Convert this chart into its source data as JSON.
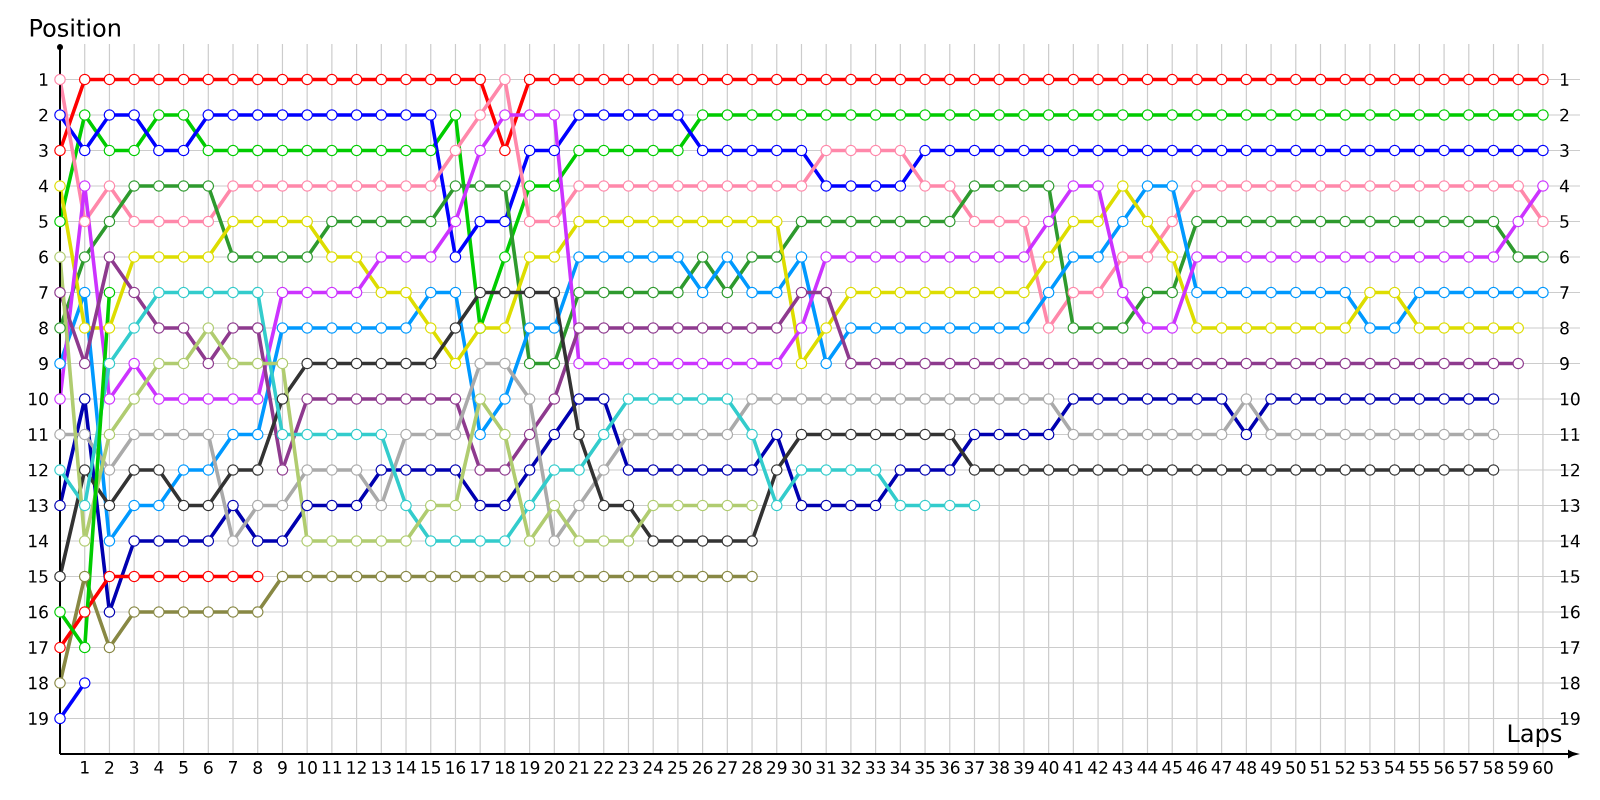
{
  "chart_data": {
    "type": "line",
    "xlabel": "Laps",
    "ylabel": "Position",
    "x": [
      0,
      1,
      2,
      3,
      4,
      5,
      6,
      7,
      8,
      9,
      10,
      11,
      12,
      13,
      14,
      15,
      16,
      17,
      18,
      19,
      20,
      21,
      22,
      23,
      24,
      25,
      26,
      27,
      28,
      29,
      30,
      31,
      32,
      33,
      34,
      35,
      36,
      37,
      38,
      39,
      40,
      41,
      42,
      43,
      44,
      45,
      46,
      47,
      48,
      49,
      50,
      51,
      52,
      53,
      54,
      55,
      56,
      57,
      58,
      59,
      60
    ],
    "xlim": [
      0,
      61.5
    ],
    "xticks": [
      1,
      2,
      3,
      4,
      5,
      6,
      7,
      8,
      9,
      10,
      11,
      12,
      13,
      14,
      15,
      16,
      17,
      18,
      19,
      20,
      21,
      22,
      23,
      24,
      25,
      26,
      27,
      28,
      29,
      30,
      31,
      32,
      33,
      34,
      35,
      36,
      37,
      38,
      39,
      40,
      41,
      42,
      43,
      44,
      45,
      46,
      47,
      48,
      49,
      50,
      51,
      52,
      53,
      54,
      55,
      56,
      57,
      58,
      59,
      60
    ],
    "ylim": [
      20,
      0
    ],
    "yticks": [
      1,
      2,
      3,
      4,
      5,
      6,
      7,
      8,
      9,
      10,
      11,
      12,
      13,
      14,
      15,
      16,
      17,
      18,
      19
    ],
    "y2lim": [
      20,
      0
    ],
    "y2ticks": [
      1,
      2,
      3,
      4,
      5,
      6,
      7,
      8,
      9,
      10,
      11,
      12,
      13,
      14,
      15,
      16,
      17,
      18,
      19
    ],
    "grid": true,
    "marker": "circle",
    "line_style": "solid",
    "series": [
      {
        "color": "#ff0000",
        "values": [
          3,
          1,
          1,
          1,
          1,
          1,
          1,
          1,
          1,
          1,
          1,
          1,
          1,
          1,
          1,
          1,
          1,
          1,
          3,
          1,
          1,
          1,
          1,
          1,
          1,
          1,
          1,
          1,
          1,
          1,
          1,
          1,
          1,
          1,
          1,
          1,
          1,
          1,
          1,
          1,
          1,
          1,
          1,
          1,
          1,
          1,
          1,
          1,
          1,
          1,
          1,
          1,
          1,
          1,
          1,
          1,
          1,
          1,
          1,
          1,
          1
        ]
      },
      {
        "color": "#00cc00",
        "values": [
          5,
          2,
          3,
          3,
          2,
          2,
          3,
          3,
          3,
          3,
          3,
          3,
          3,
          3,
          3,
          3,
          2,
          8,
          6,
          4,
          4,
          3,
          3,
          3,
          3,
          3,
          2,
          2,
          2,
          2,
          2,
          2,
          2,
          2,
          2,
          2,
          2,
          2,
          2,
          2,
          2,
          2,
          2,
          2,
          2,
          2,
          2,
          2,
          2,
          2,
          2,
          2,
          2,
          2,
          2,
          2,
          2,
          2,
          2,
          2,
          2
        ]
      },
      {
        "color": "#0000ff",
        "values": [
          2,
          3,
          2,
          2,
          3,
          3,
          2,
          2,
          2,
          2,
          2,
          2,
          2,
          2,
          2,
          2,
          6,
          5,
          5,
          3,
          3,
          2,
          2,
          2,
          2,
          2,
          3,
          3,
          3,
          3,
          3,
          4,
          4,
          4,
          4,
          3,
          3,
          3,
          3,
          3,
          3,
          3,
          3,
          3,
          3,
          3,
          3,
          3,
          3,
          3,
          3,
          3,
          3,
          3,
          3,
          3,
          3,
          3,
          3,
          3,
          3
        ]
      },
      {
        "color": "#ff88aa",
        "values": [
          1,
          5,
          4,
          5,
          5,
          5,
          5,
          4,
          4,
          4,
          4,
          4,
          4,
          4,
          4,
          4,
          3,
          2,
          1,
          5,
          5,
          4,
          4,
          4,
          4,
          4,
          4,
          4,
          4,
          4,
          4,
          3,
          3,
          3,
          3,
          4,
          4,
          5,
          5,
          5,
          8,
          7,
          7,
          6,
          6,
          5,
          4,
          4,
          4,
          4,
          4,
          4,
          4,
          4,
          4,
          4,
          4,
          4,
          4,
          4,
          5
        ]
      },
      {
        "color": "#2e9a2e",
        "values": [
          8,
          6,
          5,
          4,
          4,
          4,
          4,
          6,
          6,
          6,
          6,
          5,
          5,
          5,
          5,
          5,
          4,
          4,
          4,
          9,
          9,
          7,
          7,
          7,
          7,
          7,
          6,
          7,
          6,
          6,
          5,
          5,
          5,
          5,
          5,
          5,
          5,
          4,
          4,
          4,
          4,
          8,
          8,
          8,
          7,
          7,
          5,
          5,
          5,
          5,
          5,
          5,
          5,
          5,
          5,
          5,
          5,
          5,
          5,
          6,
          6
        ]
      },
      {
        "color": "#0099ff",
        "values": [
          9,
          7,
          14,
          13,
          13,
          12,
          12,
          11,
          11,
          8,
          8,
          8,
          8,
          8,
          8,
          7,
          7,
          11,
          10,
          8,
          8,
          6,
          6,
          6,
          6,
          6,
          7,
          6,
          7,
          7,
          6,
          9,
          8,
          8,
          8,
          8,
          8,
          8,
          8,
          8,
          7,
          6,
          6,
          5,
          4,
          4,
          7,
          7,
          7,
          7,
          7,
          7,
          7,
          8,
          8,
          7,
          7,
          7,
          7,
          7,
          7
        ]
      },
      {
        "color": "#dddd00",
        "values": [
          4,
          8,
          8,
          6,
          6,
          6,
          6,
          5,
          5,
          5,
          5,
          6,
          6,
          7,
          7,
          8,
          9,
          8,
          8,
          6,
          6,
          5,
          5,
          5,
          5,
          5,
          5,
          5,
          5,
          5,
          9,
          8,
          7,
          7,
          7,
          7,
          7,
          7,
          7,
          7,
          6,
          5,
          5,
          4,
          5,
          6,
          8,
          8,
          8,
          8,
          8,
          8,
          8,
          7,
          7,
          8,
          8,
          8,
          8,
          8,
          null
        ]
      },
      {
        "color": "#cc33ff",
        "values": [
          10,
          4,
          10,
          9,
          10,
          10,
          10,
          10,
          10,
          7,
          7,
          7,
          7,
          6,
          6,
          6,
          5,
          3,
          2,
          2,
          2,
          9,
          9,
          9,
          9,
          9,
          9,
          9,
          9,
          9,
          8,
          6,
          6,
          6,
          6,
          6,
          6,
          6,
          6,
          6,
          5,
          4,
          4,
          7,
          8,
          8,
          6,
          6,
          6,
          6,
          6,
          6,
          6,
          6,
          6,
          6,
          6,
          6,
          6,
          5,
          4
        ]
      },
      {
        "color": "#8e3a8e",
        "values": [
          7,
          9,
          6,
          7,
          8,
          8,
          9,
          8,
          8,
          12,
          10,
          10,
          10,
          10,
          10,
          10,
          10,
          12,
          12,
          11,
          10,
          8,
          8,
          8,
          8,
          8,
          8,
          8,
          8,
          8,
          7,
          7,
          9,
          9,
          9,
          9,
          9,
          9,
          9,
          9,
          9,
          9,
          9,
          9,
          9,
          9,
          9,
          9,
          9,
          9,
          9,
          9,
          9,
          9,
          9,
          9,
          9,
          9,
          9,
          9,
          null
        ]
      },
      {
        "color": "#0000b0",
        "values": [
          13,
          10,
          16,
          14,
          14,
          14,
          14,
          13,
          14,
          14,
          13,
          13,
          13,
          12,
          12,
          12,
          12,
          13,
          13,
          12,
          11,
          10,
          10,
          12,
          12,
          12,
          12,
          12,
          12,
          11,
          13,
          13,
          13,
          13,
          12,
          12,
          12,
          11,
          11,
          11,
          11,
          10,
          10,
          10,
          10,
          10,
          10,
          10,
          11,
          10,
          10,
          10,
          10,
          10,
          10,
          10,
          10,
          10,
          10,
          null,
          null
        ]
      },
      {
        "color": "#aaaaaa",
        "values": [
          11,
          11,
          12,
          11,
          11,
          11,
          11,
          14,
          13,
          13,
          12,
          12,
          12,
          13,
          11,
          11,
          11,
          9,
          9,
          10,
          14,
          13,
          12,
          11,
          11,
          11,
          11,
          11,
          10,
          10,
          10,
          10,
          10,
          10,
          10,
          10,
          10,
          10,
          10,
          10,
          10,
          11,
          11,
          11,
          11,
          11,
          11,
          11,
          10,
          11,
          11,
          11,
          11,
          11,
          11,
          11,
          11,
          11,
          11,
          null,
          null
        ]
      },
      {
        "color": "#333333",
        "values": [
          15,
          12,
          13,
          12,
          12,
          13,
          13,
          12,
          12,
          10,
          9,
          9,
          9,
          9,
          9,
          9,
          8,
          7,
          7,
          7,
          7,
          11,
          13,
          13,
          14,
          14,
          14,
          14,
          14,
          12,
          11,
          11,
          11,
          11,
          11,
          11,
          11,
          12,
          12,
          12,
          12,
          12,
          12,
          12,
          12,
          12,
          12,
          12,
          12,
          12,
          12,
          12,
          12,
          12,
          12,
          12,
          12,
          12,
          12,
          null,
          null
        ]
      },
      {
        "color": "#33cccc",
        "values": [
          12,
          13,
          9,
          8,
          7,
          7,
          7,
          7,
          7,
          11,
          11,
          11,
          11,
          11,
          13,
          14,
          14,
          14,
          14,
          13,
          12,
          12,
          11,
          10,
          10,
          10,
          10,
          10,
          11,
          13,
          12,
          12,
          12,
          12,
          13,
          13,
          13,
          13,
          null,
          null,
          null,
          null,
          null,
          null,
          null,
          null,
          null,
          null,
          null,
          null,
          null,
          null,
          null,
          null,
          null,
          null,
          null,
          null,
          null,
          null,
          null
        ]
      },
      {
        "color": "#b0cc70",
        "values": [
          6,
          14,
          11,
          10,
          9,
          9,
          8,
          9,
          9,
          9,
          14,
          14,
          14,
          14,
          14,
          13,
          13,
          10,
          11,
          14,
          13,
          14,
          14,
          14,
          13,
          13,
          13,
          13,
          13,
          null,
          null,
          null,
          null,
          null,
          null,
          null,
          null,
          null,
          null,
          null,
          null,
          null,
          null,
          null,
          null,
          null,
          null,
          null,
          null,
          null,
          null,
          null,
          null,
          null,
          null,
          null,
          null,
          null,
          null,
          null,
          null
        ]
      },
      {
        "color": "#888844",
        "values": [
          18,
          15,
          17,
          16,
          16,
          16,
          16,
          16,
          16,
          15,
          15,
          15,
          15,
          15,
          15,
          15,
          15,
          15,
          15,
          15,
          15,
          15,
          15,
          15,
          15,
          15,
          15,
          15,
          15,
          null,
          null,
          null,
          null,
          null,
          null,
          null,
          null,
          null,
          null,
          null,
          null,
          null,
          null,
          null,
          null,
          null,
          null,
          null,
          null,
          null,
          null,
          null,
          null,
          null,
          null,
          null,
          null,
          null,
          null,
          null,
          null
        ]
      },
      {
        "color": "#ff0000",
        "values": [
          17,
          16,
          15,
          15,
          15,
          15,
          15,
          15,
          15,
          null,
          null,
          null,
          null,
          null,
          null,
          null,
          null,
          null,
          null,
          null,
          null,
          null,
          null,
          null,
          null,
          null,
          null,
          null,
          null,
          null,
          null,
          null,
          null,
          null,
          null,
          null,
          null,
          null,
          null,
          null,
          null,
          null,
          null,
          null,
          null,
          null,
          null,
          null,
          null,
          null,
          null,
          null,
          null,
          null,
          null,
          null,
          null,
          null,
          null,
          null,
          null
        ]
      },
      {
        "color": "#00cc00",
        "values": [
          16,
          17,
          7,
          null,
          null,
          null,
          null,
          null,
          null,
          null,
          null,
          null,
          null,
          null,
          null,
          null,
          null,
          null,
          null,
          null,
          null,
          null,
          null,
          null,
          null,
          null,
          null,
          null,
          null,
          null,
          null,
          null,
          null,
          null,
          null,
          null,
          null,
          null,
          null,
          null,
          null,
          null,
          null,
          null,
          null,
          null,
          null,
          null,
          null,
          null,
          null,
          null,
          null,
          null,
          null,
          null,
          null,
          null,
          null,
          null,
          null
        ]
      },
      {
        "color": "#0000ff",
        "values": [
          19,
          18,
          null,
          null,
          null,
          null,
          null,
          null,
          null,
          null,
          null,
          null,
          null,
          null,
          null,
          null,
          null,
          null,
          null,
          null,
          null,
          null,
          null,
          null,
          null,
          null,
          null,
          null,
          null,
          null,
          null,
          null,
          null,
          null,
          null,
          null,
          null,
          null,
          null,
          null,
          null,
          null,
          null,
          null,
          null,
          null,
          null,
          null,
          null,
          null,
          null,
          null,
          null,
          null,
          null,
          null,
          null,
          null,
          null,
          null,
          null
        ]
      }
    ]
  }
}
